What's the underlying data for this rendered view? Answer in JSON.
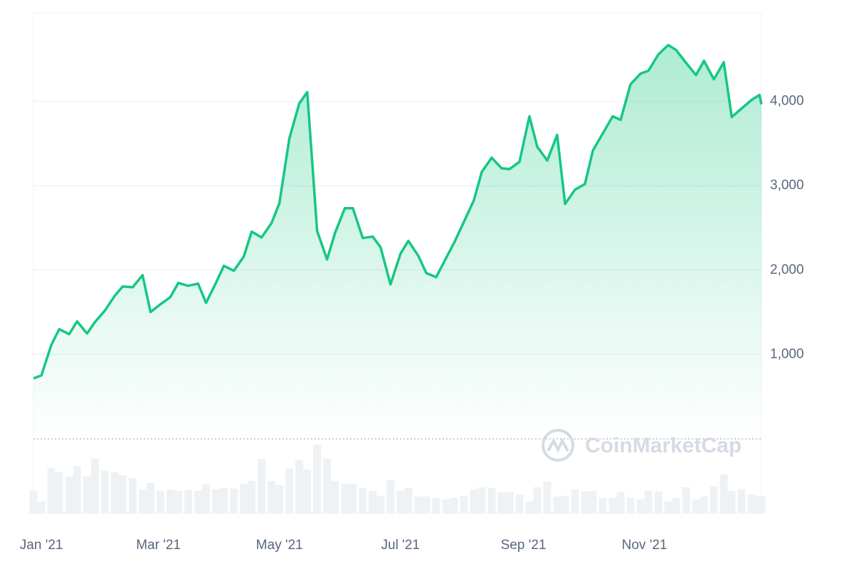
{
  "chart_data": {
    "type": "line",
    "watermark": "CoinMarketCap",
    "x": [
      -4,
      0,
      5,
      9,
      14,
      18,
      23,
      27,
      32,
      37,
      41,
      46,
      51,
      55,
      60,
      65,
      69,
      74,
      79,
      83,
      88,
      92,
      97,
      102,
      106,
      111,
      116,
      120,
      125,
      130,
      134,
      139,
      144,
      148,
      153,
      157,
      162,
      167,
      171,
      176,
      181,
      185,
      190,
      194,
      199,
      204,
      208,
      213,
      218,
      222,
      227,
      232,
      236,
      241,
      246,
      250,
      255,
      260,
      264,
      269,
      274,
      278,
      283,
      288,
      292,
      297,
      302,
      306,
      311,
      316,
      320,
      325,
      330,
      334,
      339,
      344,
      348,
      353,
      358,
      362,
      363
    ],
    "series": [
      {
        "color": "#16c784",
        "values": [
          717,
          751,
          1114,
          1300,
          1241,
          1392,
          1249,
          1384,
          1519,
          1696,
          1806,
          1797,
          1941,
          1502,
          1595,
          1679,
          1848,
          1814,
          1840,
          1612,
          1848,
          2051,
          1992,
          2160,
          2456,
          2388,
          2557,
          2793,
          3561,
          3975,
          4110,
          2464,
          2127,
          2439,
          2734,
          2734,
          2380,
          2397,
          2270,
          1831,
          2194,
          2346,
          2169,
          1966,
          1916,
          2143,
          2321,
          2574,
          2827,
          3165,
          3333,
          3207,
          3198,
          3283,
          3823,
          3460,
          3300,
          3603,
          2785,
          2954,
          3021,
          3418,
          3620,
          3823,
          3781,
          4203,
          4329,
          4363,
          4557,
          4667,
          4608,
          4456,
          4312,
          4481,
          4262,
          4464,
          3814,
          3916,
          4017,
          4076,
          3966
        ]
      },
      {
        "color": "#eff2f5",
        "axis": "y2",
        "values": [
          32,
          17,
          64,
          58,
          52,
          67,
          52,
          77,
          60,
          58,
          54,
          50,
          34,
          43,
          32,
          34,
          32,
          33,
          32,
          41,
          34,
          36,
          35,
          42,
          46,
          77,
          46,
          40,
          63,
          75,
          62,
          97,
          77,
          46,
          42,
          42,
          36,
          32,
          25,
          47,
          32,
          36,
          24,
          24,
          22,
          20,
          22,
          25,
          34,
          37,
          36,
          30,
          30,
          26,
          17,
          37,
          45,
          24,
          25,
          34,
          31,
          32,
          22,
          22,
          30,
          22,
          20,
          32,
          31,
          17,
          22,
          37,
          20,
          24,
          38,
          55,
          32,
          34,
          27,
          25,
          24
        ]
      }
    ],
    "xlim": [
      -4,
      363
    ],
    "xticks": [
      {
        "value": 0,
        "label": "Jan '21"
      },
      {
        "value": 59,
        "label": "Mar '21"
      },
      {
        "value": 120,
        "label": "May '21"
      },
      {
        "value": 181,
        "label": "Jul '21"
      },
      {
        "value": 243,
        "label": "Sep '21"
      },
      {
        "value": 304,
        "label": "Nov '21"
      }
    ],
    "ylim": [
      0,
      5050
    ],
    "yticks": [
      {
        "value": 1000,
        "label": "1,000"
      },
      {
        "value": 2000,
        "label": "2,000"
      },
      {
        "value": 3000,
        "label": "3,000"
      },
      {
        "value": 4000,
        "label": "4,000"
      }
    ],
    "y2lim": [
      0,
      105
    ],
    "grid": true
  }
}
